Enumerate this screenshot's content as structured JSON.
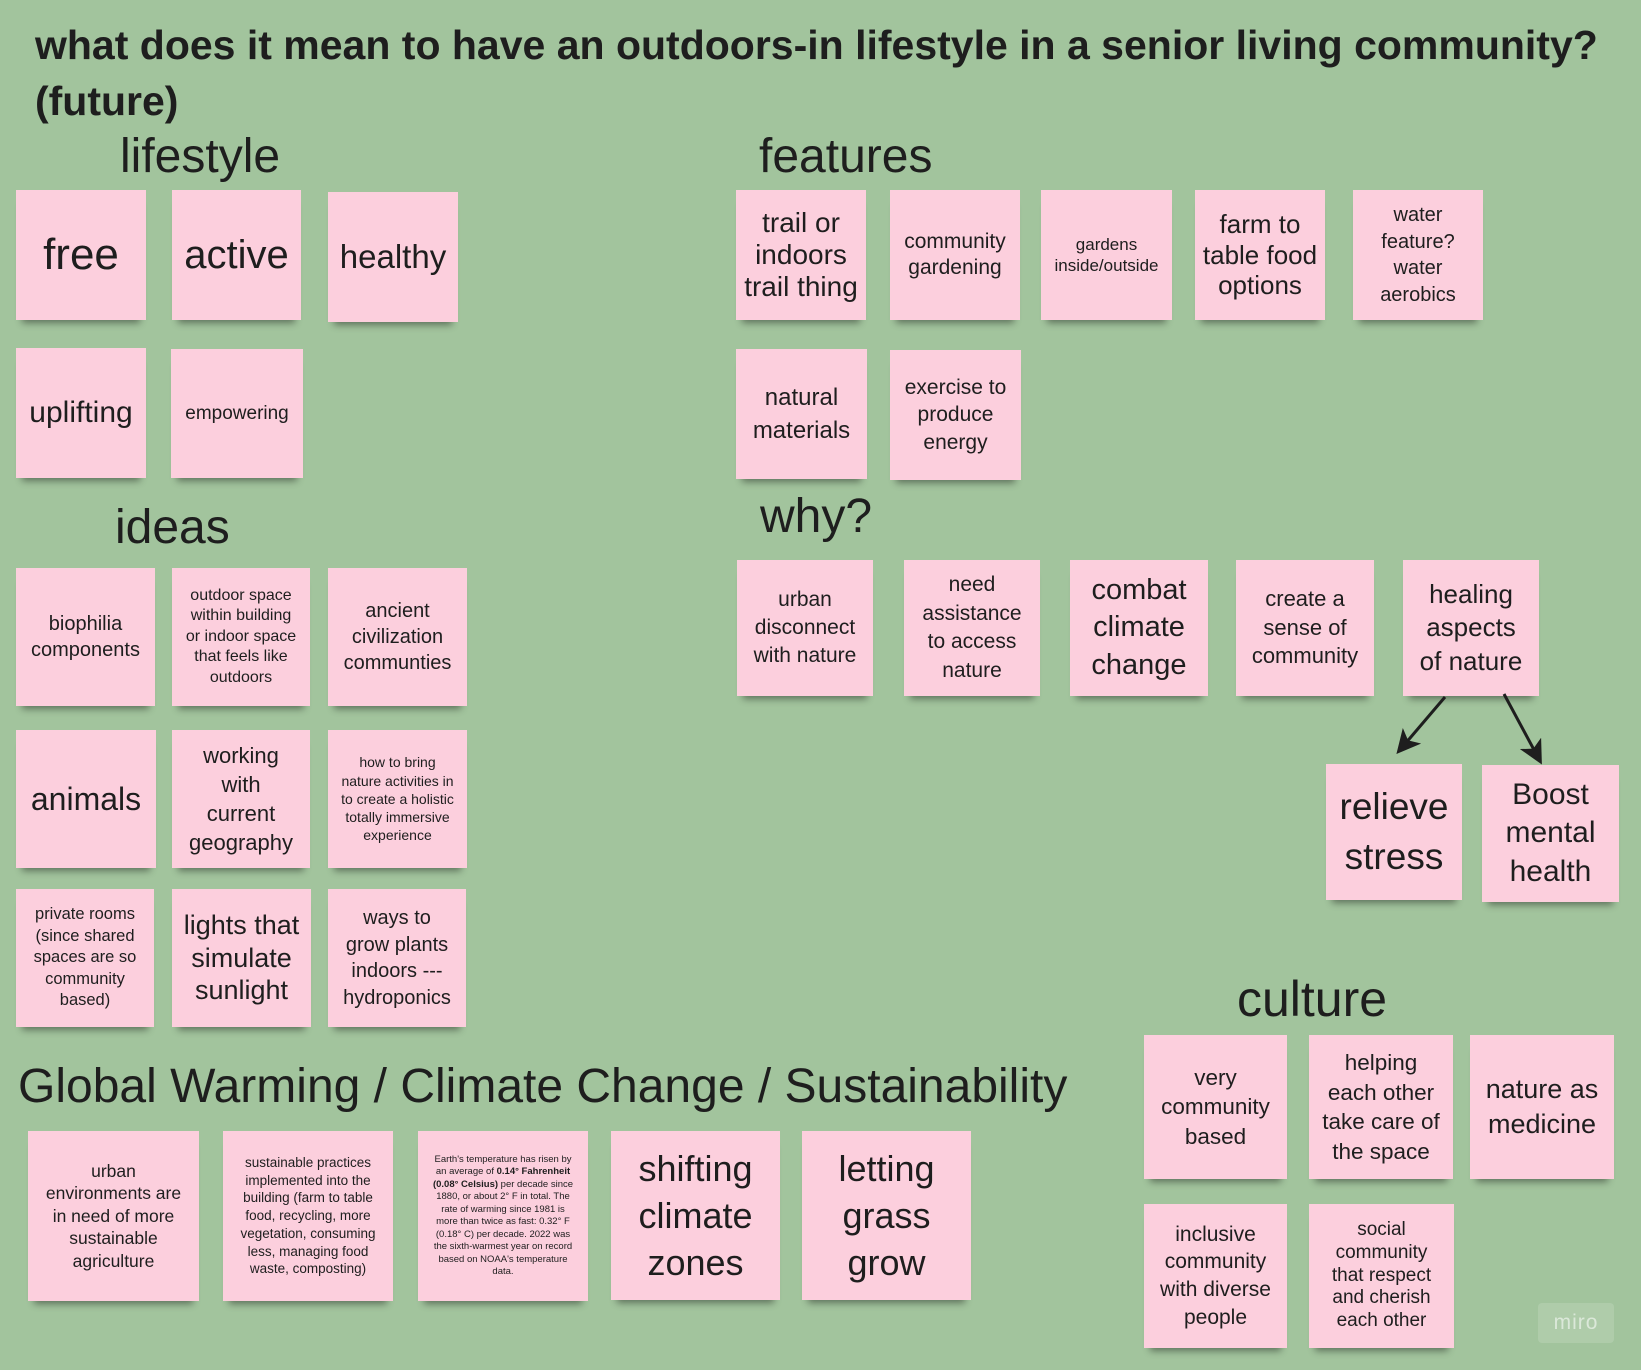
{
  "board": {
    "title": "what does it mean to have an outdoors-in lifestyle in a senior living community? (future)",
    "background_color": "#a2c49d",
    "sticky_color": "#fccfdd",
    "text_color": "#1e1e1e"
  },
  "lifestyle": {
    "heading": "lifestyle",
    "notes": [
      "free",
      "active",
      "healthy",
      "uplifting",
      "empowering"
    ]
  },
  "features": {
    "heading": "features",
    "notes": [
      "trail or\nindoors\ntrail thing",
      "community\ngardening",
      "gardens\ninside/outside",
      "farm to\ntable food\noptions",
      "water\nfeature?\nwater\naerobics",
      "natural\nmaterials",
      "exercise to\nproduce\nenergy"
    ]
  },
  "ideas": {
    "heading": "ideas",
    "notes": [
      "biophilia\ncomponents",
      "outdoor space\nwithin building\nor indoor space\nthat feels like\noutdoors",
      "ancient\ncivilization\ncommunties",
      "animals",
      "working\nwith\ncurrent\ngeography",
      "how to bring\nnature activities in\nto create a holistic\ntotally immersive\nexperience",
      "private rooms\n(since shared\nspaces are so\ncommunity\nbased)",
      "lights that\nsimulate\nsunlight",
      "ways to\ngrow plants\nindoors ---\nhydroponics"
    ]
  },
  "why": {
    "heading": "why?",
    "notes": [
      "urban\ndisconnect\nwith nature",
      "need\nassistance\nto access\nnature",
      "combat\nclimate\nchange",
      "create a\nsense of\ncommunity",
      "healing\naspects\nof nature"
    ],
    "healing_outcomes": [
      "relieve\nstress",
      "Boost\nmental\nhealth"
    ]
  },
  "culture": {
    "heading": "culture",
    "notes": [
      "very\ncommunity\nbased",
      "helping\neach other\ntake care of\nthe space",
      "nature as\nmedicine",
      "inclusive\ncommunity\nwith diverse\npeople",
      "social\ncommunity\nthat respect\nand cherish\neach other"
    ]
  },
  "climate": {
    "heading": "Global Warming / Climate Change / Sustainability",
    "notes": [
      "urban\nenvironments are\nin need of more\nsustainable\nagriculture",
      "sustainable practices\nimplemented into the\nbuilding (farm to table\nfood, recycling, more\nvegetation, consuming\nless, managing food\nwaste, composting)",
      "shifting\nclimate\nzones",
      "letting\ngrass\ngrow"
    ],
    "temperature_note": {
      "text_1": "Earth's temperature has risen by\nan average of ",
      "bold_1": "0.14° Fahrenheit\n(0.08° Celsius)",
      "text_2": " per decade since\n1880, or about 2° F in total. The\nrate of warming since 1981 is\nmore than twice as fast: 0.32° F\n(0.18° C) per decade. 2022 was\nthe sixth-warmest year on record\nbased on NOAA's temperature\ndata."
    }
  },
  "icons": {
    "connector": "arrow-icon"
  },
  "watermark": "miro"
}
